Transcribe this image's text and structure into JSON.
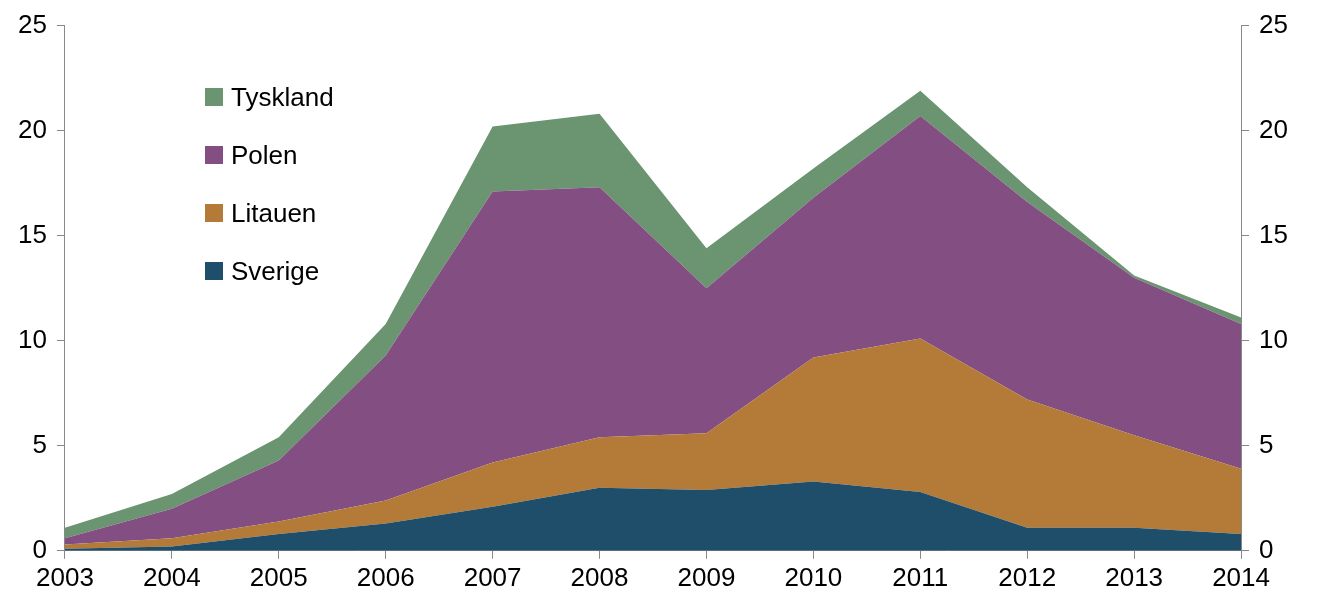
{
  "chart_data": {
    "type": "area",
    "stacked": true,
    "grid": false,
    "legend": "top-left",
    "categories": [
      "2003",
      "2004",
      "2005",
      "2006",
      "2007",
      "2008",
      "2009",
      "2010",
      "2011",
      "2012",
      "2013",
      "2014"
    ],
    "series": [
      {
        "name": "Sverige",
        "color": "#1f4e6b",
        "values": [
          0.1,
          0.2,
          0.8,
          1.3,
          2.1,
          3.0,
          2.9,
          3.3,
          2.8,
          1.1,
          1.1,
          0.8
        ]
      },
      {
        "name": "Litauen",
        "color": "#b47a38",
        "values": [
          0.2,
          0.4,
          0.6,
          1.1,
          2.1,
          2.4,
          2.7,
          5.9,
          7.3,
          6.1,
          4.4,
          3.1
        ]
      },
      {
        "name": "Polen",
        "color": "#834f83",
        "values": [
          0.3,
          1.4,
          2.9,
          6.9,
          12.9,
          11.9,
          6.9,
          7.6,
          10.6,
          9.4,
          7.5,
          6.9
        ]
      },
      {
        "name": "Tyskland",
        "color": "#6b9470",
        "values": [
          0.5,
          0.7,
          1.1,
          1.5,
          3.1,
          3.5,
          1.9,
          1.4,
          1.2,
          0.7,
          0.1,
          0.3
        ]
      }
    ],
    "ylim": [
      0,
      25
    ],
    "yticks": [
      0,
      5,
      10,
      15,
      20,
      25
    ],
    "y2lim": [
      0,
      25
    ],
    "y2ticks": [
      0,
      5,
      10,
      15,
      20,
      25
    ]
  }
}
